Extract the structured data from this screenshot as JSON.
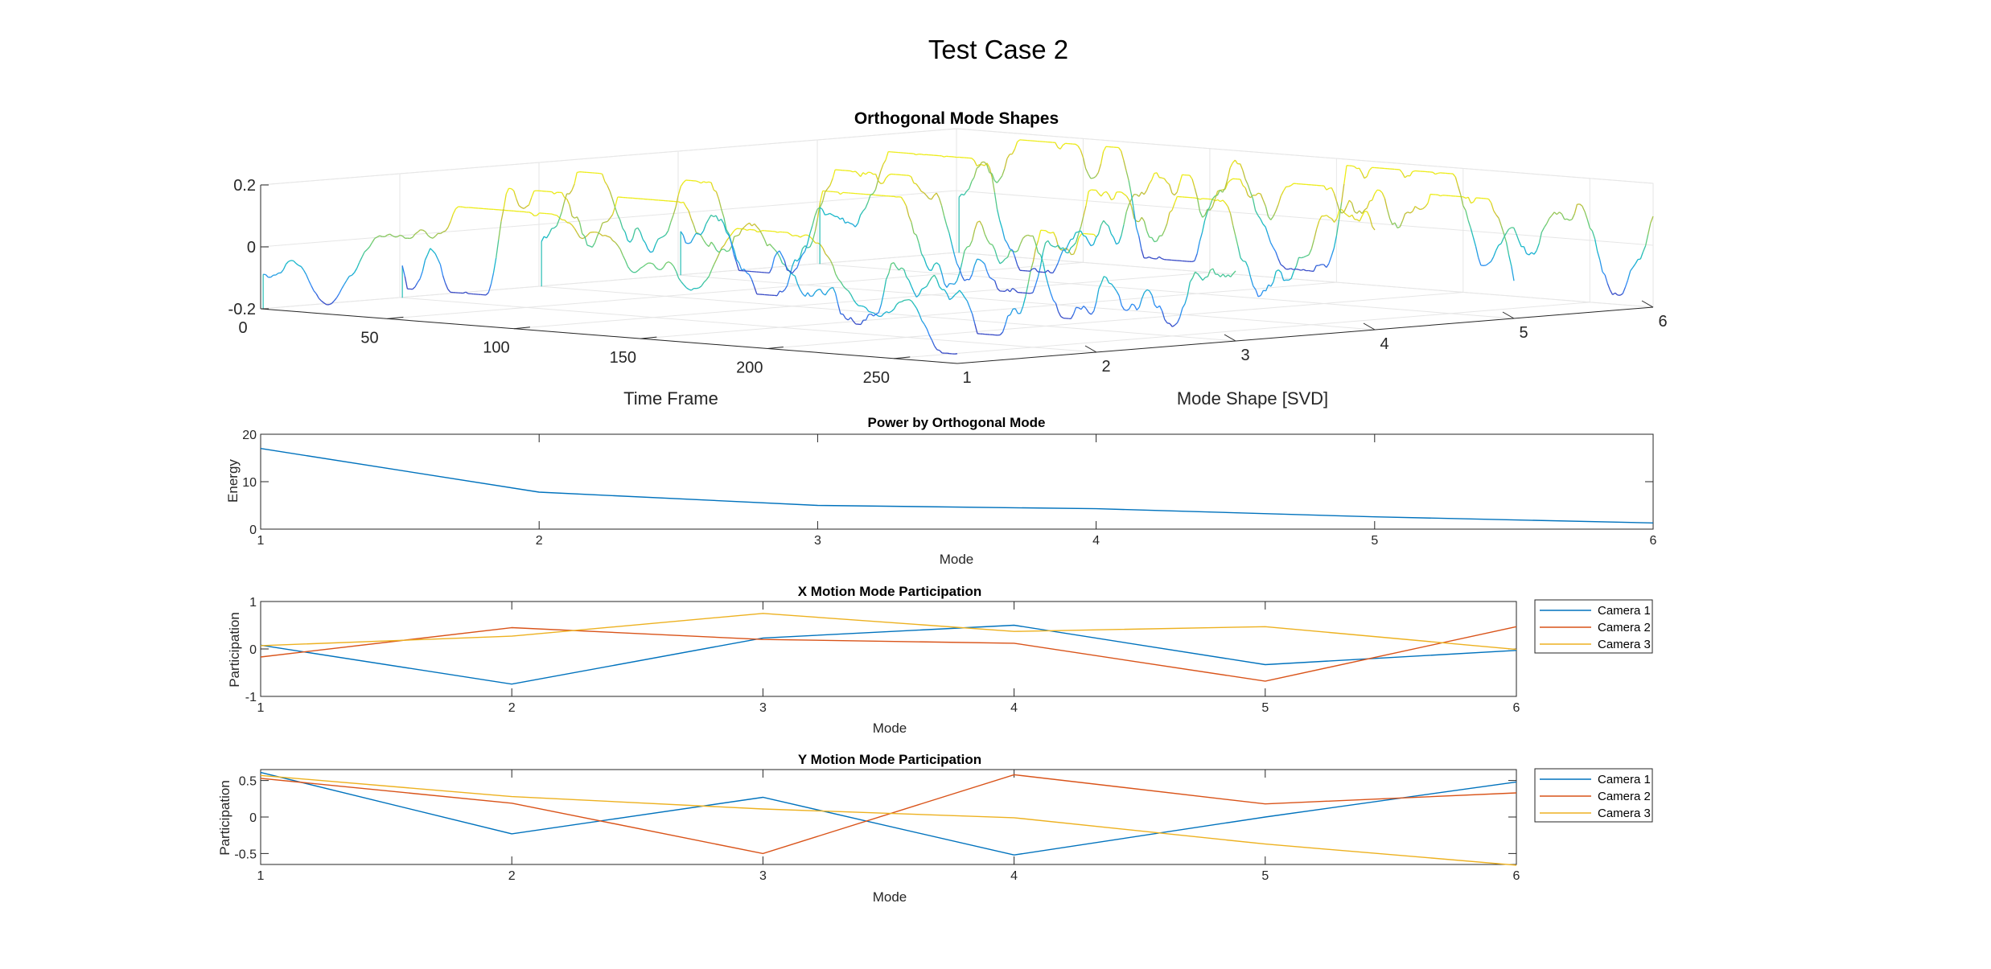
{
  "figure_title": "Test Case 2",
  "colors": {
    "camera_1": "#0072BD",
    "camera_2": "#D95319",
    "camera_3": "#EDB120",
    "axis": "#262626",
    "grid": "#E6E6E6"
  },
  "chart_data": [
    {
      "type": "line",
      "title": "Orthogonal Mode Shapes",
      "xlabel": "Time Frame",
      "ylabel": "Mode Shape [SVD]",
      "zlabel": "",
      "xlim": [
        0,
        275
      ],
      "ylim": [
        1,
        6
      ],
      "zlim": [
        -0.2,
        0.2
      ],
      "xticks": [
        "0",
        "50",
        "100",
        "150",
        "200",
        "250"
      ],
      "yticks": [
        "1",
        "2",
        "3",
        "4",
        "5",
        "6"
      ],
      "zticks": [
        "-0.2",
        "0",
        "0.2"
      ],
      "grid": true,
      "colormap": "parula",
      "notes": "3D waterfall: one noisy trace per mode shape (1-6) across time frames 0-275"
    },
    {
      "type": "line",
      "title": "Power by Orthogonal Mode",
      "xlabel": "Mode",
      "ylabel": "Energy",
      "xlim": [
        1,
        6
      ],
      "ylim": [
        0,
        20
      ],
      "xticks": [
        "1",
        "2",
        "3",
        "4",
        "5",
        "6"
      ],
      "yticks": [
        "0",
        "10",
        "20"
      ],
      "x": [
        1,
        2,
        3,
        4,
        5,
        6
      ],
      "series": [
        {
          "values": [
            17.0,
            7.8,
            5.0,
            4.3,
            2.6,
            1.3
          ]
        }
      ]
    },
    {
      "type": "line",
      "title": "X Motion Mode Participation",
      "xlabel": "Mode",
      "ylabel": "Participation",
      "xlim": [
        1,
        6
      ],
      "ylim": [
        -1,
        1
      ],
      "xticks": [
        "1",
        "2",
        "3",
        "4",
        "5",
        "6"
      ],
      "yticks": [
        "-1",
        "0",
        "1"
      ],
      "legend_position": "outside-right",
      "x": [
        1,
        2,
        3,
        4,
        5,
        6
      ],
      "series": [
        {
          "name": "Camera 1",
          "values": [
            0.08,
            -0.74,
            0.23,
            0.5,
            -0.33,
            -0.03
          ]
        },
        {
          "name": "Camera 2",
          "values": [
            -0.17,
            0.45,
            0.2,
            0.12,
            -0.68,
            0.47
          ]
        },
        {
          "name": "Camera 3",
          "values": [
            0.07,
            0.27,
            0.75,
            0.37,
            0.47,
            -0.01
          ]
        }
      ]
    },
    {
      "type": "line",
      "title": "Y Motion Mode Participation",
      "xlabel": "Mode",
      "ylabel": "Participation",
      "xlim": [
        1,
        6
      ],
      "ylim": [
        -0.65,
        0.65
      ],
      "xticks": [
        "1",
        "2",
        "3",
        "4",
        "5",
        "6"
      ],
      "yticks": [
        "-0.5",
        "0",
        "0.5"
      ],
      "legend_position": "outside-right",
      "x": [
        1,
        2,
        3,
        4,
        5,
        6
      ],
      "series": [
        {
          "name": "Camera 1",
          "values": [
            0.61,
            -0.23,
            0.27,
            -0.52,
            0.0,
            0.48
          ]
        },
        {
          "name": "Camera 2",
          "values": [
            0.53,
            0.19,
            -0.5,
            0.58,
            0.18,
            0.33
          ]
        },
        {
          "name": "Camera 3",
          "values": [
            0.57,
            0.28,
            0.11,
            -0.01,
            -0.37,
            -0.66
          ]
        }
      ]
    }
  ]
}
